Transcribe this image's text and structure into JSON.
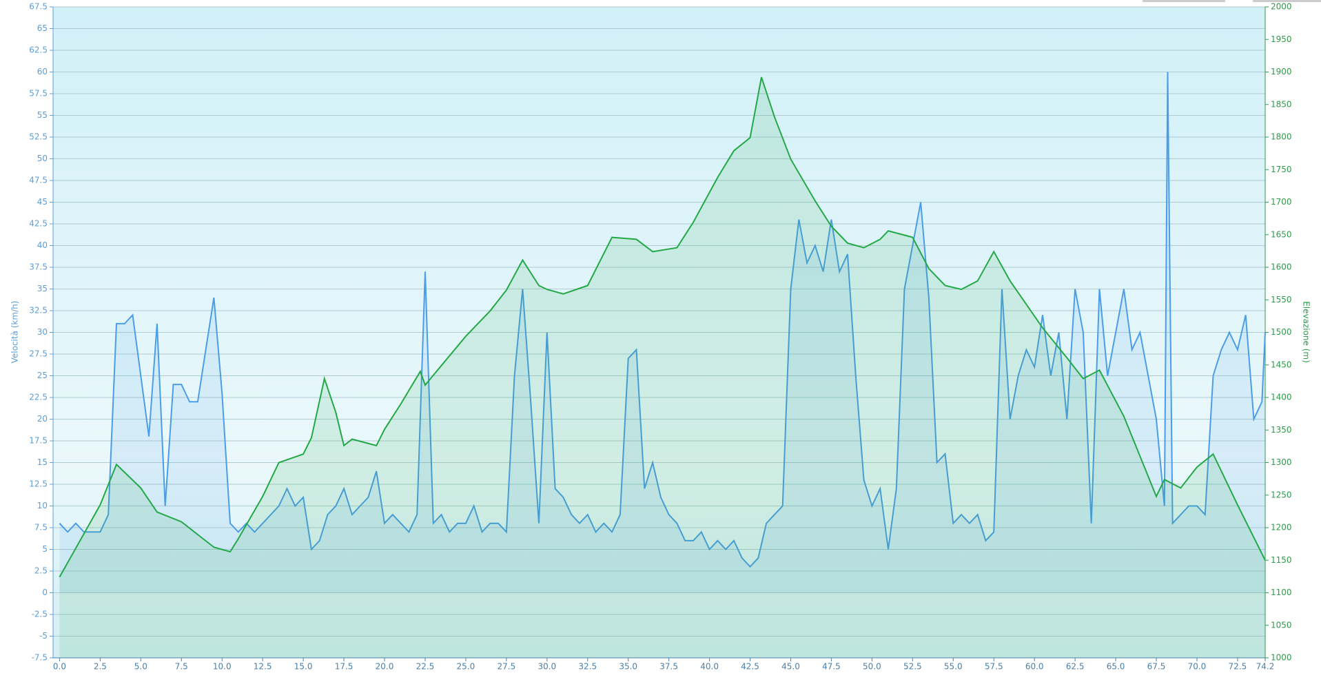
{
  "chart_data": {
    "type": "line",
    "y_label": "Velocità (km/h)",
    "y2_label": "Elevazione (m)",
    "xlim": [
      -0.4,
      74.2
    ],
    "xticks": [
      {
        "value": 0,
        "label": "0.0"
      },
      2.5,
      {
        "value": 5,
        "label": "5.0"
      },
      7.5,
      {
        "value": 10,
        "label": "10.0"
      },
      12.5,
      {
        "value": 15,
        "label": "15.0"
      },
      17.5,
      {
        "value": 20,
        "label": "20.0"
      },
      22.5,
      {
        "value": 25,
        "label": "25.0"
      },
      27.5,
      {
        "value": 30,
        "label": "30.0"
      },
      32.5,
      {
        "value": 35,
        "label": "35.0"
      },
      37.5,
      {
        "value": 40,
        "label": "40.0"
      },
      42.5,
      {
        "value": 45,
        "label": "45.0"
      },
      47.5,
      {
        "value": 50,
        "label": "50.0"
      },
      52.5,
      {
        "value": 55,
        "label": "55.0"
      },
      57.5,
      {
        "value": 60,
        "label": "60.0"
      },
      62.5,
      {
        "value": 65,
        "label": "65.0"
      },
      67.5,
      {
        "value": 70,
        "label": "70.0"
      },
      72.5,
      74.2
    ],
    "ylim": [
      -7.5,
      67.5
    ],
    "yticks": [
      -7.5,
      -5,
      -2.5,
      0,
      2.5,
      5,
      7.5,
      10,
      12.5,
      15,
      17.5,
      20,
      22.5,
      25,
      27.5,
      30,
      32.5,
      35,
      37.5,
      40,
      42.5,
      45,
      47.5,
      50,
      52.5,
      55,
      57.5,
      60,
      62.5,
      65,
      67.5
    ],
    "y2lim": [
      1000,
      2000
    ],
    "y2ticks": [
      1000,
      1050,
      1100,
      1150,
      1200,
      1250,
      1300,
      1350,
      1400,
      1450,
      1500,
      1550,
      1600,
      1650,
      1700,
      1750,
      1800,
      1850,
      1900,
      1950,
      2000
    ],
    "grid": true,
    "series": [
      {
        "color": "#4a9de6",
        "x": [
          0,
          0.5,
          1,
          1.5,
          2,
          2.5,
          3,
          3.5,
          4,
          4.5,
          5,
          5.5,
          6,
          6.5,
          7,
          7.5,
          8,
          8.5,
          9,
          9.5,
          10,
          10.5,
          11,
          11.5,
          12,
          12.5,
          13,
          13.5,
          14,
          14.5,
          15,
          15.5,
          16,
          16.5,
          17,
          17.5,
          18,
          18.5,
          19,
          19.5,
          20,
          20.5,
          21,
          21.5,
          22,
          22.5,
          23,
          23.5,
          24,
          24.5,
          25,
          25.5,
          26,
          26.5,
          27,
          27.5,
          28,
          28.5,
          29,
          29.5,
          30,
          30.5,
          31,
          31.5,
          32,
          32.5,
          33,
          33.5,
          34,
          34.5,
          35,
          35.5,
          36,
          36.5,
          37,
          37.5,
          38,
          38.5,
          39,
          39.5,
          40,
          40.5,
          41,
          41.5,
          42,
          42.5,
          43,
          43.5,
          44,
          44.5,
          45,
          45.5,
          46,
          46.5,
          47,
          47.5,
          48,
          48.5,
          49,
          49.5,
          50,
          50.5,
          51,
          51.5,
          52,
          52.5,
          53,
          53.5,
          54,
          54.5,
          55,
          55.5,
          56,
          56.5,
          57,
          57.5,
          58,
          58.5,
          59,
          59.5,
          60,
          60.5,
          61,
          61.5,
          62,
          62.5,
          63,
          63.5,
          64,
          64.5,
          65,
          65.5,
          66,
          66.5,
          67,
          67.5,
          68,
          68.2,
          68.5,
          69,
          69.5,
          70,
          70.5,
          71,
          71.5,
          72,
          72.5,
          73,
          73.5,
          74,
          74.2
        ],
        "values": [
          8,
          7,
          8,
          7,
          7,
          7,
          9,
          31,
          31,
          32,
          25,
          18,
          31,
          10,
          24,
          24,
          22,
          22,
          28,
          34,
          23,
          8,
          7,
          8,
          7,
          8,
          9,
          10,
          12,
          10,
          11,
          5,
          6,
          9,
          10,
          12,
          9,
          10,
          11,
          14,
          8,
          9,
          8,
          7,
          9,
          37,
          8,
          9,
          7,
          8,
          8,
          10,
          7,
          8,
          8,
          7,
          25,
          35,
          22,
          8,
          30,
          12,
          11,
          9,
          8,
          9,
          7,
          8,
          7,
          9,
          27,
          28,
          12,
          15,
          11,
          9,
          8,
          6,
          6,
          7,
          5,
          6,
          5,
          6,
          4,
          3,
          4,
          8,
          9,
          10,
          35,
          43,
          38,
          40,
          37,
          43,
          37,
          39,
          25,
          13,
          10,
          12,
          5,
          12,
          35,
          40,
          45,
          34,
          15,
          16,
          8,
          9,
          8,
          9,
          6,
          7,
          35,
          20,
          25,
          28,
          26,
          32,
          25,
          30,
          20,
          35,
          30,
          8,
          35,
          25,
          30,
          35,
          28,
          30,
          25,
          20,
          10,
          60,
          8,
          9,
          10,
          10,
          9,
          25,
          28,
          30,
          28,
          32,
          20,
          22,
          30
        ]
      },
      {
        "color": "#22a845",
        "axis": "y2",
        "x": [
          0,
          2.5,
          3.5,
          5,
          6,
          7.5,
          9.5,
          10.5,
          11,
          12.5,
          13.5,
          15,
          15.5,
          16.3,
          17,
          17.5,
          18,
          19.5,
          20,
          21,
          22.2,
          22.5,
          23.5,
          25,
          26.5,
          27.5,
          28.5,
          29.5,
          30,
          31,
          32.5,
          34,
          35.5,
          36.5,
          38,
          39,
          40.5,
          41.5,
          42.5,
          43.2,
          44,
          45,
          46.5,
          47.5,
          48.5,
          49.5,
          50.5,
          51,
          52.5,
          53.5,
          54.5,
          55.5,
          56.5,
          57.5,
          58.5,
          60.5,
          62,
          63,
          64,
          65.5,
          67.5,
          68,
          69,
          70,
          71,
          72.5,
          74.2
        ],
        "values": [
          1124,
          1235,
          1297,
          1261,
          1224,
          1209,
          1170,
          1163,
          1183,
          1248,
          1300,
          1313,
          1338,
          1429,
          1377,
          1326,
          1336,
          1326,
          1351,
          1390,
          1440,
          1419,
          1449,
          1494,
          1533,
          1565,
          1611,
          1572,
          1566,
          1559,
          1572,
          1646,
          1643,
          1624,
          1630,
          1669,
          1738,
          1779,
          1799,
          1892,
          1831,
          1766,
          1702,
          1663,
          1637,
          1630,
          1643,
          1656,
          1646,
          1598,
          1572,
          1566,
          1579,
          1624,
          1579,
          1507,
          1461,
          1429,
          1442,
          1371,
          1248,
          1274,
          1261,
          1293,
          1313,
          1235,
          1150
        ]
      }
    ]
  }
}
